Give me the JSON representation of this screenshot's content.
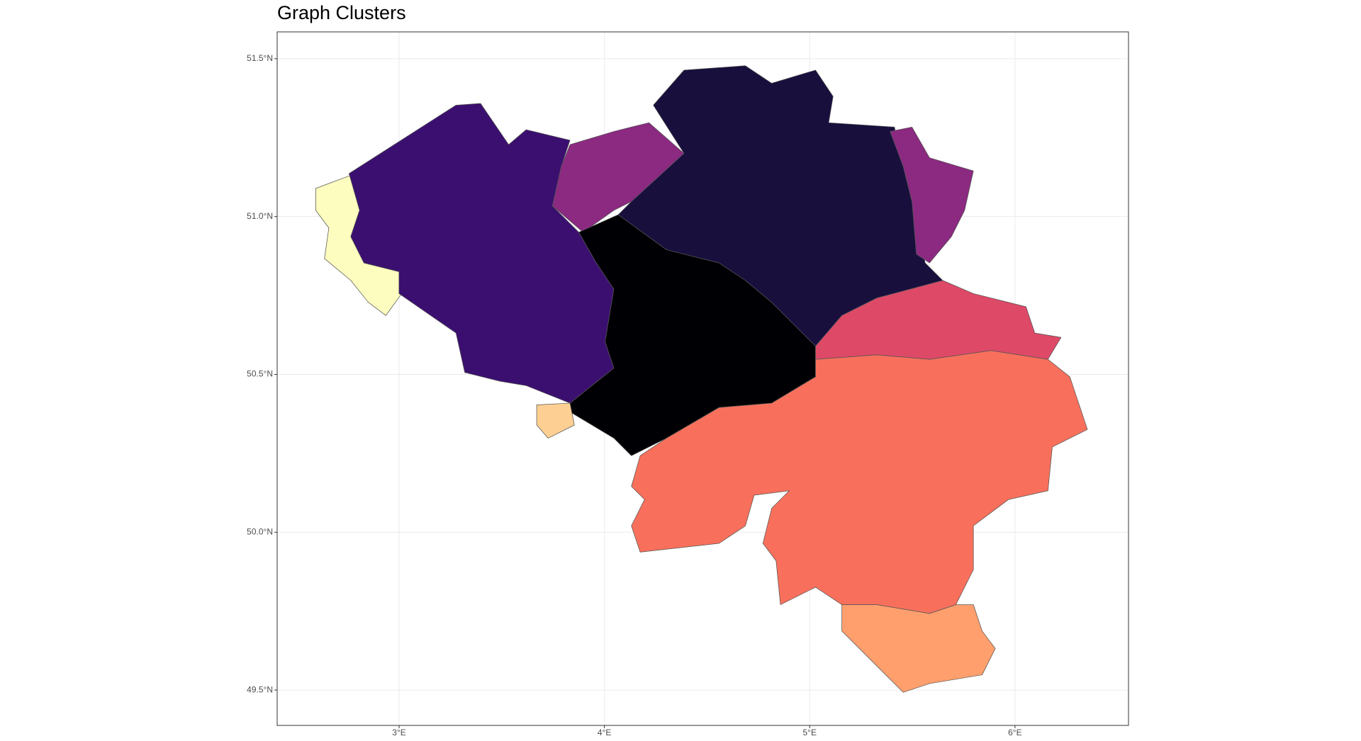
{
  "chart_data": {
    "type": "map",
    "title": "Graph Clusters",
    "xlim": [
      2.406,
      6.553
    ],
    "xticks": [
      {
        "value": 3,
        "label": "3°E"
      },
      {
        "value": 4,
        "label": "4°E"
      },
      {
        "value": 5,
        "label": "5°E"
      },
      {
        "value": 6,
        "label": "6°E"
      }
    ],
    "ylim": [
      49.388,
      51.585
    ],
    "yticks": [
      {
        "value": 49.5,
        "label": "49.5°N"
      },
      {
        "value": 50,
        "label": "50.0°N"
      },
      {
        "value": 50.5,
        "label": "50.5°N"
      },
      {
        "value": 51,
        "label": "51.0°N"
      },
      {
        "value": 51.5,
        "label": "51.5°N"
      }
    ],
    "grid": true
  }
}
